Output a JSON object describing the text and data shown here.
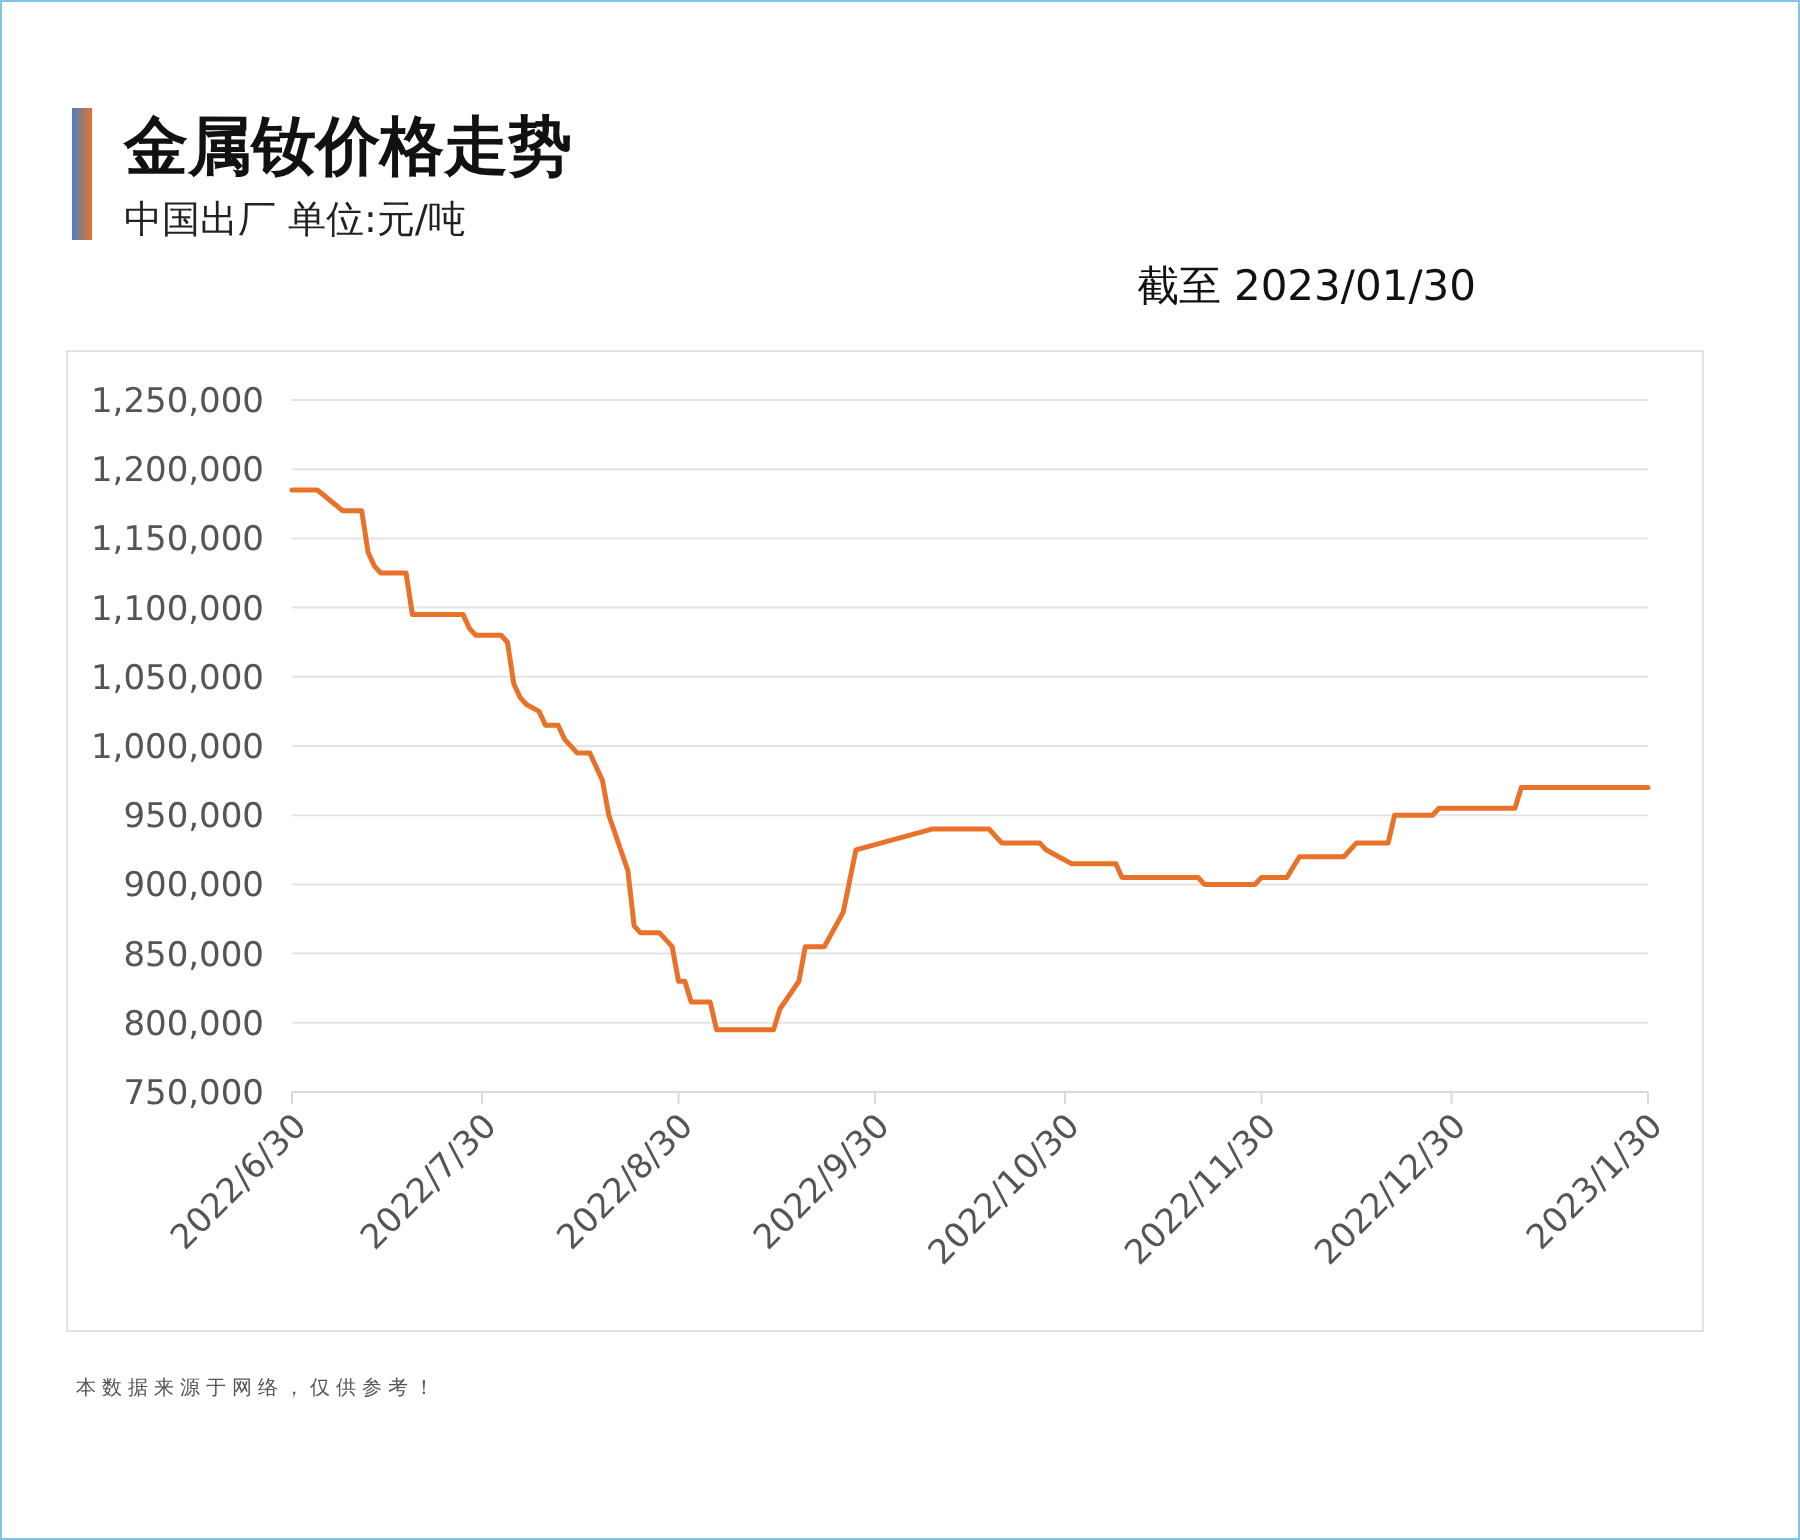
{
  "chart_data": {
    "type": "line",
    "title": "金属钕价格走势",
    "subtitle": "中国出厂  单位:元/吨",
    "annotations": [
      "截至 2023/01/30",
      "本数据来源于网络，仅供参考！"
    ],
    "x": [
      "2022-06-30",
      "2022-07-04",
      "2022-07-08",
      "2022-07-11",
      "2022-07-12",
      "2022-07-13",
      "2022-07-14",
      "2022-07-18",
      "2022-07-19",
      "2022-07-27",
      "2022-07-28",
      "2022-07-29",
      "2022-08-02",
      "2022-08-03",
      "2022-08-04",
      "2022-08-05",
      "2022-08-06",
      "2022-08-08",
      "2022-08-09",
      "2022-08-11",
      "2022-08-12",
      "2022-08-14",
      "2022-08-16",
      "2022-08-18",
      "2022-08-19",
      "2022-08-22",
      "2022-08-23",
      "2022-08-24",
      "2022-08-27",
      "2022-08-29",
      "2022-08-30",
      "2022-08-31",
      "2022-09-01",
      "2022-09-04",
      "2022-09-05",
      "2022-09-14",
      "2022-09-15",
      "2022-09-18",
      "2022-09-19",
      "2022-09-22",
      "2022-09-25",
      "2022-09-27",
      "2022-10-09",
      "2022-10-18",
      "2022-10-20",
      "2022-10-26",
      "2022-10-27",
      "2022-10-29",
      "2022-10-31",
      "2022-11-07",
      "2022-11-08",
      "2022-11-20",
      "2022-11-21",
      "2022-11-29",
      "2022-11-30",
      "2022-12-04",
      "2022-12-06",
      "2022-12-13",
      "2022-12-15",
      "2022-12-20",
      "2022-12-21",
      "2022-12-27",
      "2022-12-28",
      "2023-01-09",
      "2023-01-10",
      "2023-01-30"
    ],
    "series": [
      {
        "color": "#e8722a",
        "values": [
          1185000,
          1185000,
          1170000,
          1170000,
          1140000,
          1130000,
          1125000,
          1125000,
          1095000,
          1095000,
          1085000,
          1080000,
          1080000,
          1075000,
          1045000,
          1035000,
          1030000,
          1025000,
          1015000,
          1015000,
          1005000,
          995000,
          995000,
          975000,
          950000,
          910000,
          870000,
          865000,
          865000,
          855000,
          830000,
          830000,
          815000,
          815000,
          795000,
          795000,
          810000,
          830000,
          855000,
          855000,
          880000,
          925000,
          940000,
          940000,
          930000,
          930000,
          925000,
          920000,
          915000,
          915000,
          905000,
          905000,
          900000,
          900000,
          905000,
          905000,
          920000,
          920000,
          930000,
          930000,
          950000,
          950000,
          955000,
          955000,
          970000,
          970000
        ]
      }
    ],
    "xlim": [
      "2022-06-30",
      "2023-01-30"
    ],
    "xticks": [
      {
        "value": "2022-06-30",
        "label": "2022/6/30"
      },
      {
        "value": "2022-07-30",
        "label": "2022/7/30"
      },
      {
        "value": "2022-08-30",
        "label": "2022/8/30"
      },
      {
        "value": "2022-09-30",
        "label": "2022/9/30"
      },
      {
        "value": "2022-10-30",
        "label": "2022/10/30"
      },
      {
        "value": "2022-11-30",
        "label": "2022/11/30"
      },
      {
        "value": "2022-12-30",
        "label": "2022/12/30"
      },
      {
        "value": "2023-01-30",
        "label": "2023/1/30"
      }
    ],
    "ylim": [
      750000,
      1250000
    ],
    "yticks": [
      {
        "value": 750000,
        "label": "750,000"
      },
      {
        "value": 800000,
        "label": "800,000"
      },
      {
        "value": 850000,
        "label": "850,000"
      },
      {
        "value": 900000,
        "label": "900,000"
      },
      {
        "value": 950000,
        "label": "950,000"
      },
      {
        "value": 1000000,
        "label": "1,000,000"
      },
      {
        "value": 1050000,
        "label": "1,050,000"
      },
      {
        "value": 1100000,
        "label": "1,100,000"
      },
      {
        "value": 1150000,
        "label": "1,150,000"
      },
      {
        "value": 1200000,
        "label": "1,200,000"
      },
      {
        "value": 1250000,
        "label": "1,250,000"
      }
    ],
    "grid": "y",
    "marker": "none",
    "line_style": "solid"
  }
}
